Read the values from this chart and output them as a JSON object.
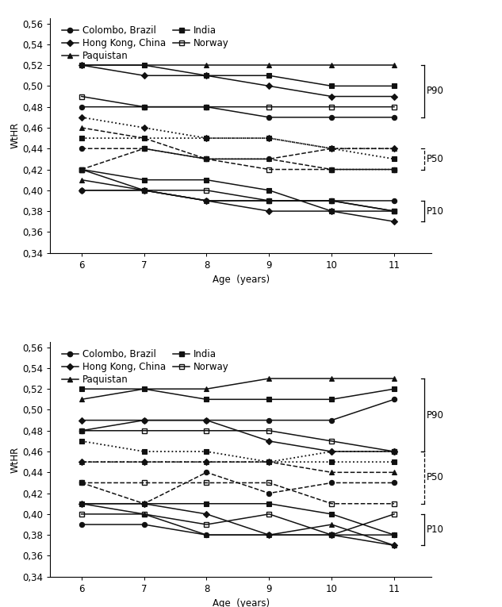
{
  "ages": [
    6,
    7,
    8,
    9,
    10,
    11
  ],
  "top_chart": {
    "P90": {
      "Colombo_Brazil": [
        0.48,
        0.48,
        0.48,
        0.47,
        0.47,
        0.47
      ],
      "Hong_Kong_China": [
        0.52,
        0.51,
        0.51,
        0.5,
        0.49,
        0.49
      ],
      "Paquistan": [
        0.52,
        0.52,
        0.52,
        0.52,
        0.52,
        0.52
      ],
      "India": [
        0.52,
        0.52,
        0.51,
        0.51,
        0.5,
        0.5
      ],
      "Norway": [
        0.49,
        0.48,
        0.48,
        0.48,
        0.48,
        0.48
      ]
    },
    "P50": {
      "Colombo_Brazil": [
        0.44,
        0.44,
        0.43,
        0.43,
        0.42,
        0.42
      ],
      "Hong_Kong_China": [
        0.47,
        0.46,
        0.45,
        0.45,
        0.44,
        0.44
      ],
      "Paquistan": [
        0.46,
        0.45,
        0.43,
        0.43,
        0.44,
        0.44
      ],
      "India": [
        0.45,
        0.45,
        0.45,
        0.45,
        0.44,
        0.43
      ],
      "Norway": [
        0.42,
        0.44,
        0.43,
        0.42,
        0.42,
        0.42
      ]
    },
    "P10": {
      "Colombo_Brazil": [
        0.4,
        0.4,
        0.39,
        0.39,
        0.39,
        0.39
      ],
      "Hong_Kong_China": [
        0.4,
        0.4,
        0.39,
        0.38,
        0.38,
        0.37
      ],
      "Paquistan": [
        0.41,
        0.4,
        0.39,
        0.39,
        0.39,
        0.38
      ],
      "India": [
        0.42,
        0.41,
        0.41,
        0.4,
        0.38,
        0.38
      ],
      "Norway": [
        0.42,
        0.4,
        0.4,
        0.39,
        0.39,
        0.38
      ]
    }
  },
  "bottom_chart": {
    "P90": {
      "Colombo_Brazil": [
        0.48,
        0.49,
        0.49,
        0.49,
        0.49,
        0.51
      ],
      "Hong_Kong_China": [
        0.49,
        0.49,
        0.49,
        0.47,
        0.46,
        0.46
      ],
      "Paquistan": [
        0.51,
        0.52,
        0.52,
        0.53,
        0.53,
        0.53
      ],
      "India": [
        0.52,
        0.52,
        0.51,
        0.51,
        0.51,
        0.52
      ],
      "Norway": [
        0.48,
        0.48,
        0.48,
        0.48,
        0.47,
        0.46
      ]
    },
    "P50": {
      "Colombo_Brazil": [
        0.43,
        0.41,
        0.44,
        0.42,
        0.43,
        0.43
      ],
      "Hong_Kong_China": [
        0.45,
        0.45,
        0.45,
        0.45,
        0.46,
        0.46
      ],
      "Paquistan": [
        0.45,
        0.45,
        0.45,
        0.45,
        0.44,
        0.44
      ],
      "India": [
        0.47,
        0.46,
        0.46,
        0.45,
        0.45,
        0.45
      ],
      "Norway": [
        0.43,
        0.43,
        0.43,
        0.43,
        0.41,
        0.41
      ]
    },
    "P10": {
      "Colombo_Brazil": [
        0.39,
        0.39,
        0.38,
        0.38,
        0.38,
        0.38
      ],
      "Hong_Kong_China": [
        0.41,
        0.41,
        0.4,
        0.38,
        0.38,
        0.37
      ],
      "Paquistan": [
        0.41,
        0.4,
        0.38,
        0.38,
        0.39,
        0.37
      ],
      "India": [
        0.41,
        0.41,
        0.41,
        0.41,
        0.4,
        0.38
      ],
      "Norway": [
        0.4,
        0.4,
        0.39,
        0.4,
        0.38,
        0.4
      ]
    }
  },
  "series_keys": [
    "Colombo_Brazil",
    "Hong_Kong_China",
    "Paquistan",
    "India",
    "Norway"
  ],
  "markers": {
    "Colombo_Brazil": "o",
    "Hong_Kong_China": "D",
    "Paquistan": "^",
    "India": "s",
    "Norway": "s"
  },
  "legend_labels": {
    "Colombo_Brazil": "Colombo, Brazil",
    "Hong_Kong_China": "Hong Kong, China",
    "Paquistan": "Paquistan",
    "India": "India",
    "Norway": "Norway"
  },
  "p50_linestyle": {
    "Colombo_Brazil": "--",
    "Hong_Kong_China": ":",
    "Paquistan": "--",
    "India": ":",
    "Norway": "--"
  },
  "ylabel": "WtHR",
  "xlabel": "Age  (years)",
  "ylim": [
    0.34,
    0.565
  ],
  "yticks": [
    0.34,
    0.36,
    0.38,
    0.4,
    0.42,
    0.44,
    0.46,
    0.48,
    0.5,
    0.52,
    0.54,
    0.56
  ],
  "color": "#111111",
  "fontsize": 8.5,
  "markersize": 4.5
}
